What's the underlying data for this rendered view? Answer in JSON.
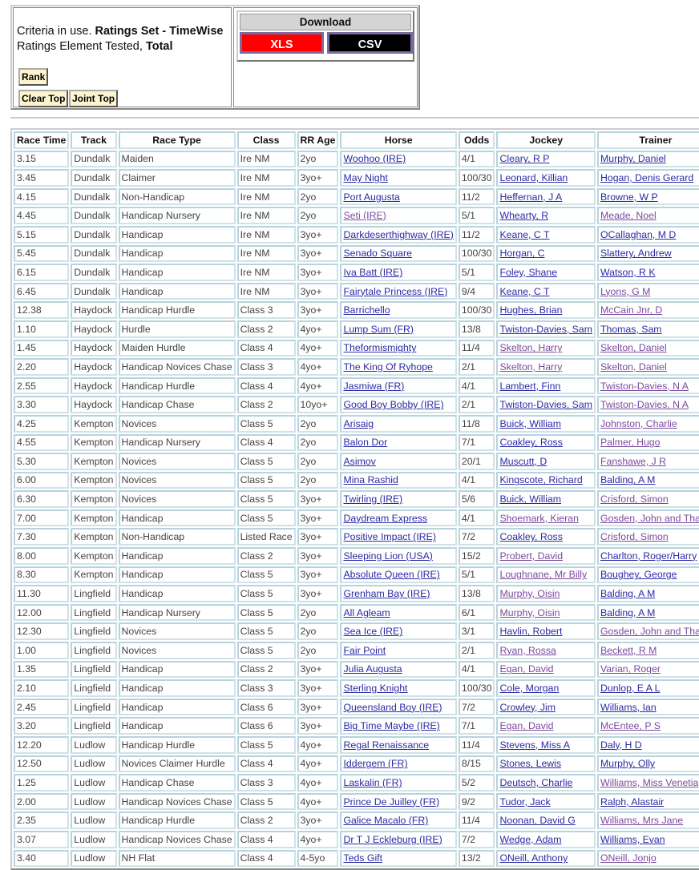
{
  "criteria": {
    "prefix": "Criteria in use. ",
    "set_label": "Ratings Set - TimeWise",
    "element_prefix": "Ratings Element Tested, ",
    "element": "Total"
  },
  "buttons": {
    "rank": "Rank",
    "clear_top": "Clear Top",
    "joint_top": "Joint Top"
  },
  "download": {
    "title": "Download",
    "xls": "XLS",
    "csv": "CSV",
    "xls_color": "#ff0000",
    "csv_color": "#000000"
  },
  "link_colors": {
    "unvisited": "#2a2aa6",
    "visited": "#7b4a9e"
  },
  "table": {
    "headers": [
      "Race Time",
      "Track",
      "Race Type",
      "Class",
      "RR Age",
      "Horse",
      "Odds",
      "Jockey",
      "Trainer"
    ],
    "rows": [
      [
        "3.15",
        "Dundalk",
        "Maiden",
        "Ire NM",
        "2yo",
        "Woohoo (IRE)",
        "4/1",
        "Cleary, R P",
        "Murphy, Daniel",
        [
          0,
          0,
          0
        ]
      ],
      [
        "3.45",
        "Dundalk",
        "Claimer",
        "Ire NM",
        "3yo+",
        "May Night",
        "100/30",
        "Leonard, Killian",
        "Hogan, Denis Gerard",
        [
          0,
          0,
          0
        ]
      ],
      [
        "4.15",
        "Dundalk",
        "Non-Handicap",
        "Ire NM",
        "2yo",
        "Port Augusta",
        "11/2",
        "Heffernan, J A",
        "Browne, W P",
        [
          0,
          0,
          0
        ]
      ],
      [
        "4.45",
        "Dundalk",
        "Handicap Nursery",
        "Ire NM",
        "2yo",
        "Seti (IRE)",
        "5/1",
        "Whearty, R",
        "Meade, Noel",
        [
          1,
          0,
          1
        ]
      ],
      [
        "5.15",
        "Dundalk",
        "Handicap",
        "Ire NM",
        "3yo+",
        "Darkdeserthighway (IRE)",
        "11/2",
        "Keane, C T",
        "OCallaghan, M D",
        [
          0,
          0,
          0
        ]
      ],
      [
        "5.45",
        "Dundalk",
        "Handicap",
        "Ire NM",
        "3yo+",
        "Senado Square",
        "100/30",
        "Horgan, C",
        "Slattery, Andrew",
        [
          0,
          0,
          0
        ]
      ],
      [
        "6.15",
        "Dundalk",
        "Handicap",
        "Ire NM",
        "3yo+",
        "Iva Batt (IRE)",
        "5/1",
        "Foley, Shane",
        "Watson, R K",
        [
          0,
          0,
          0
        ]
      ],
      [
        "6.45",
        "Dundalk",
        "Handicap",
        "Ire NM",
        "3yo+",
        "Fairytale Princess (IRE)",
        "9/4",
        "Keane, C T",
        "Lyons, G M",
        [
          0,
          0,
          1
        ]
      ],
      [
        "12.38",
        "Haydock",
        "Handicap Hurdle",
        "Class 3",
        "3yo+",
        "Barrichello",
        "100/30",
        "Hughes, Brian",
        "McCain Jnr, D",
        [
          0,
          0,
          1
        ]
      ],
      [
        "1.10",
        "Haydock",
        "Hurdle",
        "Class 2",
        "4yo+",
        "Lump Sum (FR)",
        "13/8",
        "Twiston-Davies, Sam",
        "Thomas, Sam",
        [
          0,
          0,
          0
        ]
      ],
      [
        "1.45",
        "Haydock",
        "Maiden Hurdle",
        "Class 4",
        "4yo+",
        "Theformismighty",
        "11/4",
        "Skelton, Harry",
        "Skelton, Daniel",
        [
          0,
          1,
          1
        ]
      ],
      [
        "2.20",
        "Haydock",
        "Handicap Novices Chase",
        "Class 3",
        "4yo+",
        "The King Of Ryhope",
        "2/1",
        "Skelton, Harry",
        "Skelton, Daniel",
        [
          0,
          1,
          1
        ]
      ],
      [
        "2.55",
        "Haydock",
        "Handicap Hurdle",
        "Class 4",
        "4yo+",
        "Jasmiwa (FR)",
        "4/1",
        "Lambert, Finn",
        "Twiston-Davies, N A",
        [
          0,
          0,
          1
        ]
      ],
      [
        "3.30",
        "Haydock",
        "Handicap Chase",
        "Class 2",
        "10yo+",
        "Good Boy Bobby (IRE)",
        "2/1",
        "Twiston-Davies, Sam",
        "Twiston-Davies, N A",
        [
          0,
          0,
          1
        ]
      ],
      [
        "4.25",
        "Kempton",
        "Novices",
        "Class 5",
        "2yo",
        "Arisaig",
        "11/8",
        "Buick, William",
        "Johnston, Charlie",
        [
          0,
          0,
          1
        ]
      ],
      [
        "4.55",
        "Kempton",
        "Handicap Nursery",
        "Class 4",
        "2yo",
        "Balon Dor",
        "7/1",
        "Coakley, Ross",
        "Palmer, Hugo",
        [
          0,
          0,
          1
        ]
      ],
      [
        "5.30",
        "Kempton",
        "Novices",
        "Class 5",
        "2yo",
        "Asimov",
        "20/1",
        "Muscutt, D",
        "Fanshawe, J R",
        [
          0,
          0,
          1
        ]
      ],
      [
        "6.00",
        "Kempton",
        "Novices",
        "Class 5",
        "2yo",
        "Mina Rashid",
        "4/1",
        "Kingscote, Richard",
        "Balding, A M",
        [
          0,
          0,
          0
        ]
      ],
      [
        "6.30",
        "Kempton",
        "Novices",
        "Class 5",
        "3yo+",
        "Twirling (IRE)",
        "5/6",
        "Buick, William",
        "Crisford, Simon",
        [
          0,
          0,
          1
        ]
      ],
      [
        "7.00",
        "Kempton",
        "Handicap",
        "Class 5",
        "3yo+",
        "Daydream Express",
        "4/1",
        "Shoemark, Kieran",
        "Gosden, John and Thady",
        [
          0,
          1,
          1
        ]
      ],
      [
        "7.30",
        "Kempton",
        "Non-Handicap",
        "Listed Race",
        "3yo+",
        "Positive Impact (IRE)",
        "7/2",
        "Coakley, Ross",
        "Crisford, Simon",
        [
          0,
          0,
          1
        ]
      ],
      [
        "8.00",
        "Kempton",
        "Handicap",
        "Class 2",
        "3yo+",
        "Sleeping Lion (USA)",
        "15/2",
        "Probert, David",
        "Charlton, Roger/Harry",
        [
          0,
          1,
          0
        ]
      ],
      [
        "8.30",
        "Kempton",
        "Handicap",
        "Class 5",
        "3yo+",
        "Absolute Queen (IRE)",
        "5/1",
        "Loughnane, Mr Billy",
        "Boughey, George",
        [
          0,
          1,
          0
        ]
      ],
      [
        "11.30",
        "Lingfield",
        "Handicap",
        "Class 5",
        "3yo+",
        "Grenham Bay (IRE)",
        "13/8",
        "Murphy, Oisin",
        "Balding, A M",
        [
          0,
          1,
          0
        ]
      ],
      [
        "12.00",
        "Lingfield",
        "Handicap Nursery",
        "Class 5",
        "2yo",
        "All Agleam",
        "6/1",
        "Murphy, Oisin",
        "Balding, A M",
        [
          0,
          1,
          0
        ]
      ],
      [
        "12.30",
        "Lingfield",
        "Novices",
        "Class 5",
        "2yo",
        "Sea Ice (IRE)",
        "3/1",
        "Havlin, Robert",
        "Gosden, John and Thady",
        [
          0,
          0,
          1
        ]
      ],
      [
        "1.00",
        "Lingfield",
        "Novices",
        "Class 5",
        "2yo",
        "Fair Point",
        "2/1",
        "Ryan, Rossa",
        "Beckett, R M",
        [
          0,
          1,
          1
        ]
      ],
      [
        "1.35",
        "Lingfield",
        "Handicap",
        "Class 2",
        "3yo+",
        "Julia Augusta",
        "4/1",
        "Egan, David",
        "Varian, Roger",
        [
          0,
          1,
          1
        ]
      ],
      [
        "2.10",
        "Lingfield",
        "Handicap",
        "Class 3",
        "3yo+",
        "Sterling Knight",
        "100/30",
        "Cole, Morgan",
        "Dunlop, E A L",
        [
          0,
          0,
          0
        ]
      ],
      [
        "2.45",
        "Lingfield",
        "Handicap",
        "Class 6",
        "3yo+",
        "Queensland Boy (IRE)",
        "7/2",
        "Crowley, Jim",
        "Williams, Ian",
        [
          0,
          0,
          0
        ]
      ],
      [
        "3.20",
        "Lingfield",
        "Handicap",
        "Class 6",
        "3yo+",
        "Big Time Maybe (IRE)",
        "7/1",
        "Egan, David",
        "McEntee, P S",
        [
          0,
          1,
          1
        ]
      ],
      [
        "12.20",
        "Ludlow",
        "Handicap Hurdle",
        "Class 5",
        "4yo+",
        "Regal Renaissance",
        "11/4",
        "Stevens, Miss A",
        "Daly, H D",
        [
          0,
          0,
          0
        ]
      ],
      [
        "12.50",
        "Ludlow",
        "Novices Claimer Hurdle",
        "Class 4",
        "4yo+",
        "Iddergem (FR)",
        "8/15",
        "Stones, Lewis",
        "Murphy, Olly",
        [
          0,
          0,
          0
        ]
      ],
      [
        "1.25",
        "Ludlow",
        "Handicap Chase",
        "Class 3",
        "4yo+",
        "Laskalin (FR)",
        "5/2",
        "Deutsch, Charlie",
        "Williams, Miss Venetia",
        [
          0,
          0,
          1
        ]
      ],
      [
        "2.00",
        "Ludlow",
        "Handicap Novices Chase",
        "Class 5",
        "4yo+",
        "Prince De Juilley (FR)",
        "9/2",
        "Tudor, Jack",
        "Ralph, Alastair",
        [
          0,
          0,
          0
        ]
      ],
      [
        "2.35",
        "Ludlow",
        "Handicap Hurdle",
        "Class 2",
        "3yo+",
        "Galice Macalo (FR)",
        "11/4",
        "Noonan, David G",
        "Williams, Mrs Jane",
        [
          0,
          0,
          1
        ]
      ],
      [
        "3.07",
        "Ludlow",
        "Handicap Novices Chase",
        "Class 4",
        "4yo+",
        "Dr T J Eckleburg (IRE)",
        "7/2",
        "Wedge, Adam",
        "Williams, Evan",
        [
          0,
          0,
          0
        ]
      ],
      [
        "3.40",
        "Ludlow",
        "NH Flat",
        "Class 4",
        "4-5yo",
        "Teds Gift",
        "13/2",
        "ONeill, Anthony",
        "ONeill, Jonjo",
        [
          0,
          0,
          1
        ]
      ]
    ]
  }
}
